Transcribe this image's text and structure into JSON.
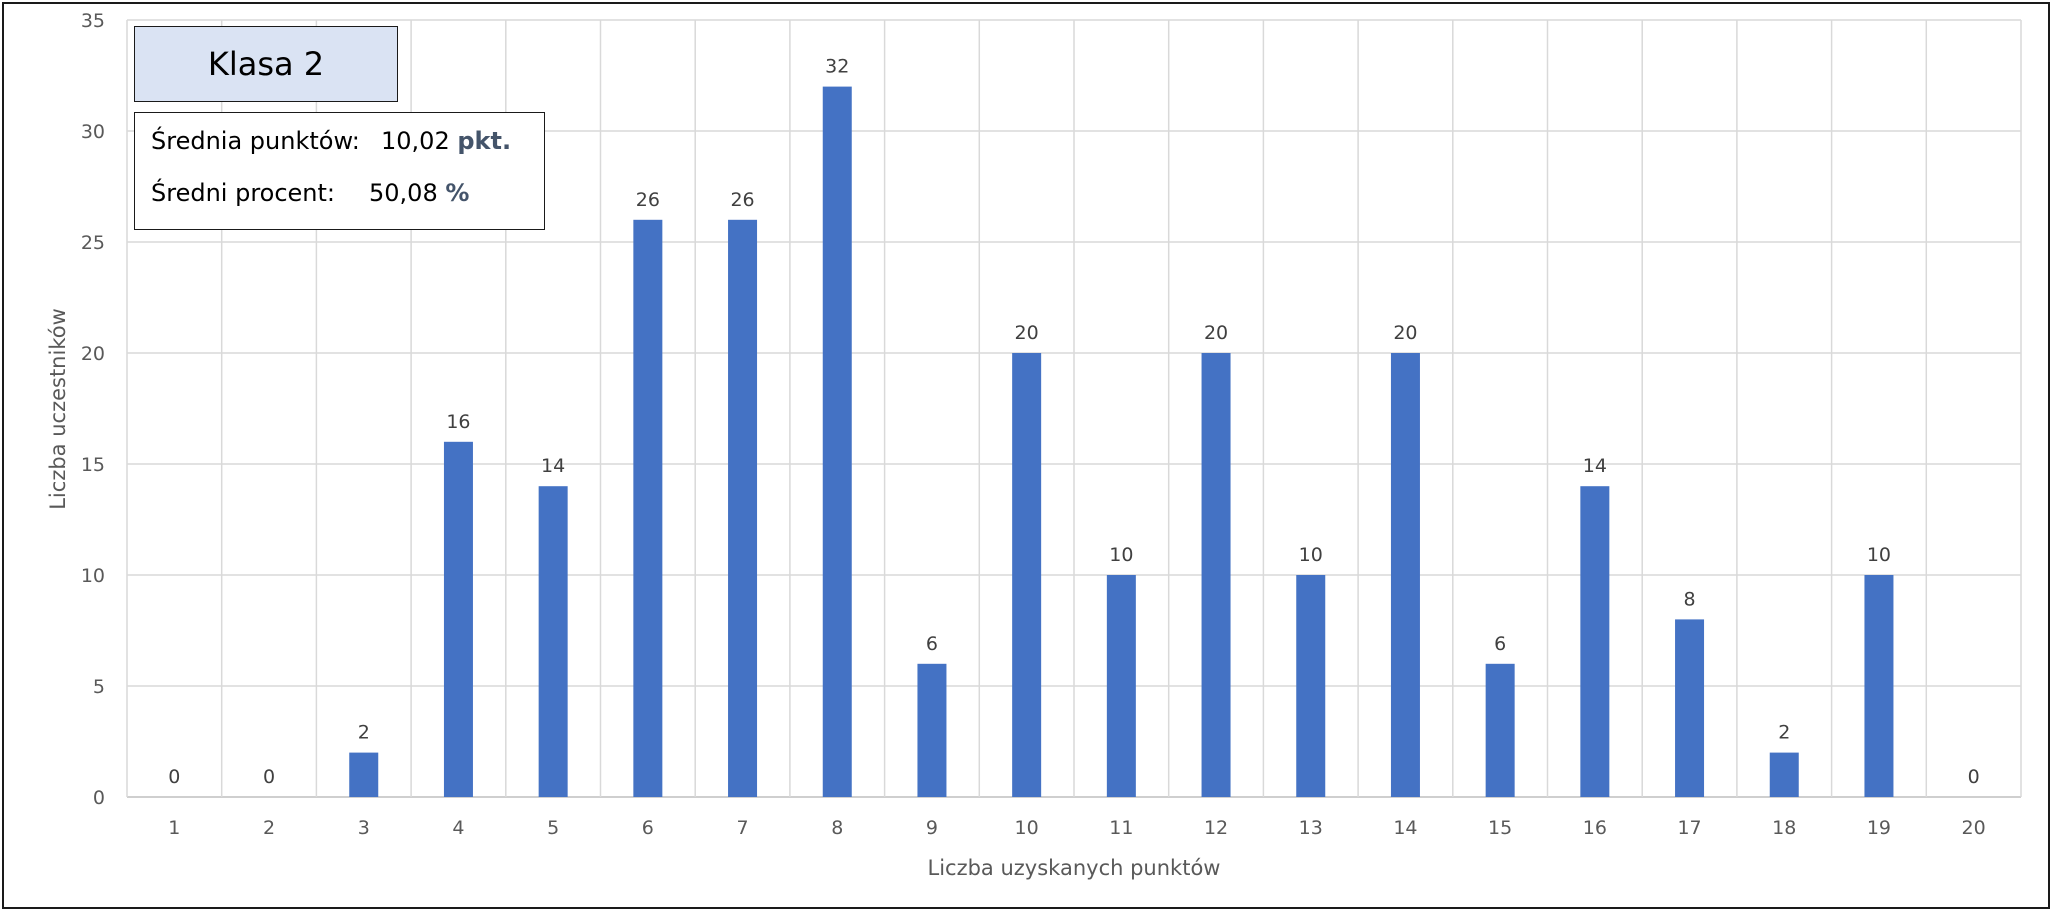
{
  "chart_data": {
    "type": "bar",
    "categories": [
      "1",
      "2",
      "3",
      "4",
      "5",
      "6",
      "7",
      "8",
      "9",
      "10",
      "11",
      "12",
      "13",
      "14",
      "15",
      "16",
      "17",
      "18",
      "19",
      "20"
    ],
    "values": [
      0,
      0,
      2,
      16,
      14,
      26,
      26,
      32,
      6,
      20,
      10,
      20,
      10,
      20,
      6,
      14,
      8,
      2,
      10,
      0
    ],
    "xlabel": "Liczba uzyskanych punktów",
    "ylabel": "Liczba uczestników",
    "ylim": [
      0,
      35
    ],
    "yticks": [
      0,
      5,
      10,
      15,
      20,
      25,
      30,
      35
    ],
    "grid": true,
    "bar_color": "#4472c4"
  },
  "title_box": {
    "text": "Klasa 2"
  },
  "stats": {
    "avg_points_label": "Średnia punktów:",
    "avg_points_value": "10,02",
    "avg_points_unit": "pkt.",
    "avg_percent_label": "Średni procent:",
    "avg_percent_value": "50,08",
    "avg_percent_unit": "%"
  }
}
